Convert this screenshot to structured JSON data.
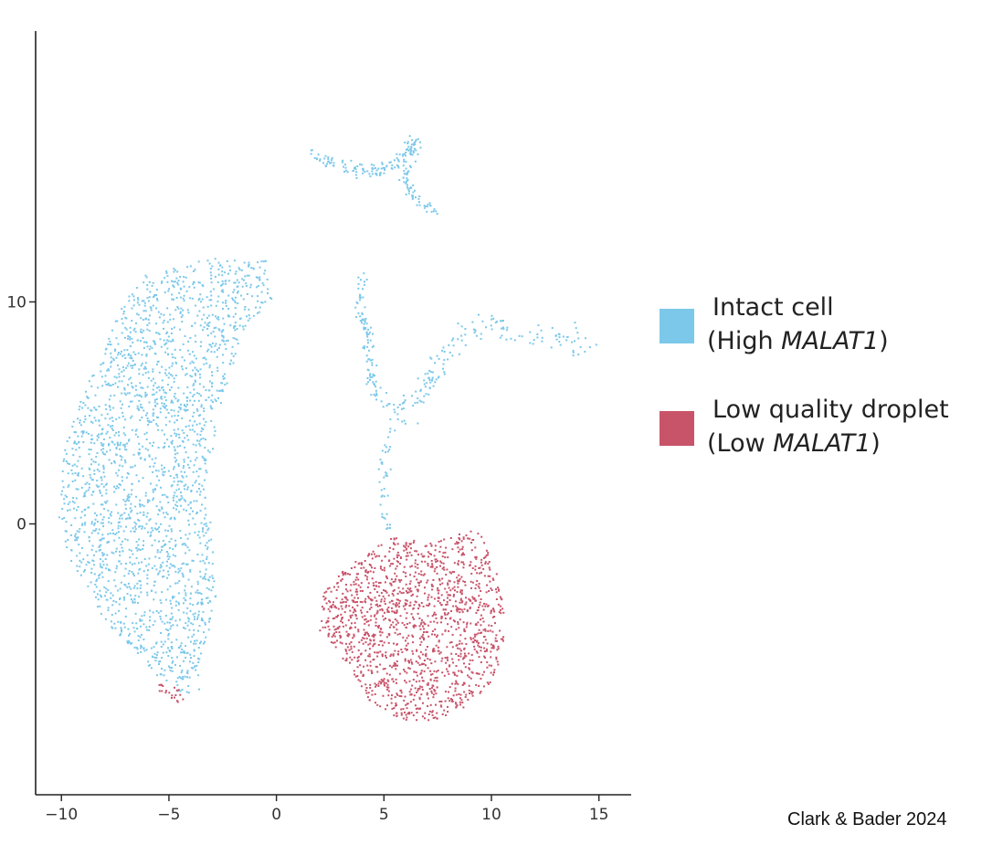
{
  "chart_data": {
    "type": "scatter",
    "title": "",
    "xlabel": "",
    "ylabel": "",
    "xlim": [
      -11.2,
      16.5
    ],
    "ylim": [
      -12.2,
      22.2
    ],
    "xticks": [
      -10,
      -5,
      0,
      5,
      10,
      15
    ],
    "yticks": [
      0,
      10
    ],
    "grid": false,
    "legend_position": "right",
    "series": [
      {
        "key": "intact",
        "color": "#7cc8ea",
        "legend": {
          "prefix": "(High ",
          "gene": "MALAT1",
          "suffix": ")",
          "name": "Intact cell"
        },
        "clusters": [
          {
            "label": "left lobe",
            "n": 2200,
            "polygon": [
              [
                -6.3,
                11.2
              ],
              [
                -3.2,
                12.0
              ],
              [
                -0.5,
                11.9
              ],
              [
                -0.2,
                10.0
              ],
              [
                -1.7,
                8.3
              ],
              [
                -2.6,
                5.0
              ],
              [
                -3.2,
                2.2
              ],
              [
                -2.8,
                -3.5
              ],
              [
                -3.6,
                -6.5
              ],
              [
                -3.3,
                -7.9
              ],
              [
                -4.3,
                -7.7
              ],
              [
                -5.2,
                -7.2
              ],
              [
                -6.5,
                -5.9
              ],
              [
                -8.0,
                -4.3
              ],
              [
                -9.6,
                -1.6
              ],
              [
                -10.2,
                0.2
              ],
              [
                -9.9,
                3.2
              ],
              [
                -9.3,
                5.1
              ],
              [
                -8.4,
                7.2
              ],
              [
                -7.3,
                9.6
              ]
            ]
          },
          {
            "label": "top arc",
            "n": 130,
            "path": [
              [
                1.7,
                16.6
              ],
              [
                2.5,
                16.3
              ],
              [
                3.6,
                16.0
              ],
              [
                4.8,
                15.8
              ],
              [
                5.6,
                16.3
              ],
              [
                6.2,
                16.9
              ],
              [
                6.5,
                17.3
              ]
            ],
            "spread": 0.16
          },
          {
            "label": "top branch",
            "n": 70,
            "path": [
              [
                6.5,
                17.0
              ],
              [
                6.2,
                16.2
              ],
              [
                6.0,
                15.5
              ],
              [
                6.3,
                14.8
              ],
              [
                6.9,
                14.3
              ],
              [
                7.7,
                13.8
              ]
            ],
            "spread": 0.13
          },
          {
            "label": "middle stem",
            "n": 110,
            "path": [
              [
                4.0,
                11.2
              ],
              [
                3.8,
                9.8
              ],
              [
                4.1,
                8.9
              ],
              [
                4.3,
                7.6
              ],
              [
                4.6,
                6.0
              ],
              [
                5.1,
                5.4
              ],
              [
                6.2,
                5.3
              ]
            ],
            "spread": 0.14
          },
          {
            "label": "right arm",
            "n": 150,
            "path": [
              [
                5.6,
                4.5
              ],
              [
                6.6,
                5.8
              ],
              [
                7.7,
                7.4
              ],
              [
                8.8,
                8.7
              ],
              [
                10.3,
                8.9
              ],
              [
                11.4,
                8.6
              ],
              [
                12.2,
                8.4
              ],
              [
                13.4,
                8.4
              ],
              [
                14.5,
                7.8
              ]
            ],
            "spread": 0.28
          },
          {
            "label": "stem to droplet",
            "n": 40,
            "path": [
              [
                5.4,
                4.4
              ],
              [
                5.0,
                3.0
              ],
              [
                5.0,
                1.6
              ],
              [
                4.9,
                0.7
              ],
              [
                5.3,
                -0.3
              ]
            ],
            "spread": 0.12
          }
        ]
      },
      {
        "key": "lowq",
        "color": "#c8546a",
        "legend": {
          "prefix": "(Low ",
          "gene": "MALAT1",
          "suffix": ")",
          "name": "Low quality droplet"
        },
        "clusters": [
          {
            "label": "right blob",
            "n": 1500,
            "polygon": [
              [
                5.3,
                -0.6
              ],
              [
                7.4,
                -0.8
              ],
              [
                9.4,
                -0.2
              ],
              [
                10.4,
                -2.5
              ],
              [
                10.7,
                -5.0
              ],
              [
                10.2,
                -7.0
              ],
              [
                8.9,
                -8.2
              ],
              [
                7.2,
                -8.9
              ],
              [
                5.6,
                -8.8
              ],
              [
                4.3,
                -8.0
              ],
              [
                3.2,
                -6.2
              ],
              [
                2.0,
                -4.8
              ],
              [
                2.1,
                -3.2
              ],
              [
                3.4,
                -1.8
              ],
              [
                4.4,
                -1.1
              ]
            ]
          },
          {
            "label": "left lobe bottom",
            "n": 20,
            "polygon": [
              [
                -5.5,
                -7.2
              ],
              [
                -4.3,
                -7.4
              ],
              [
                -4.2,
                -8.1
              ],
              [
                -5.5,
                -8.0
              ]
            ]
          }
        ]
      }
    ]
  },
  "legend": {
    "items": [
      {
        "title": "Intact cell",
        "prefix": "(High ",
        "gene": "MALAT1",
        "suffix": ")",
        "color": "#7cc8ea"
      },
      {
        "title": "Low quality droplet",
        "prefix": "(Low ",
        "gene": "MALAT1",
        "suffix": ")",
        "color": "#c8546a"
      }
    ]
  },
  "credit": "Clark & Bader 2024",
  "colors": {
    "axis": "#222222",
    "tick_label": "#333333",
    "background": "#ffffff"
  }
}
